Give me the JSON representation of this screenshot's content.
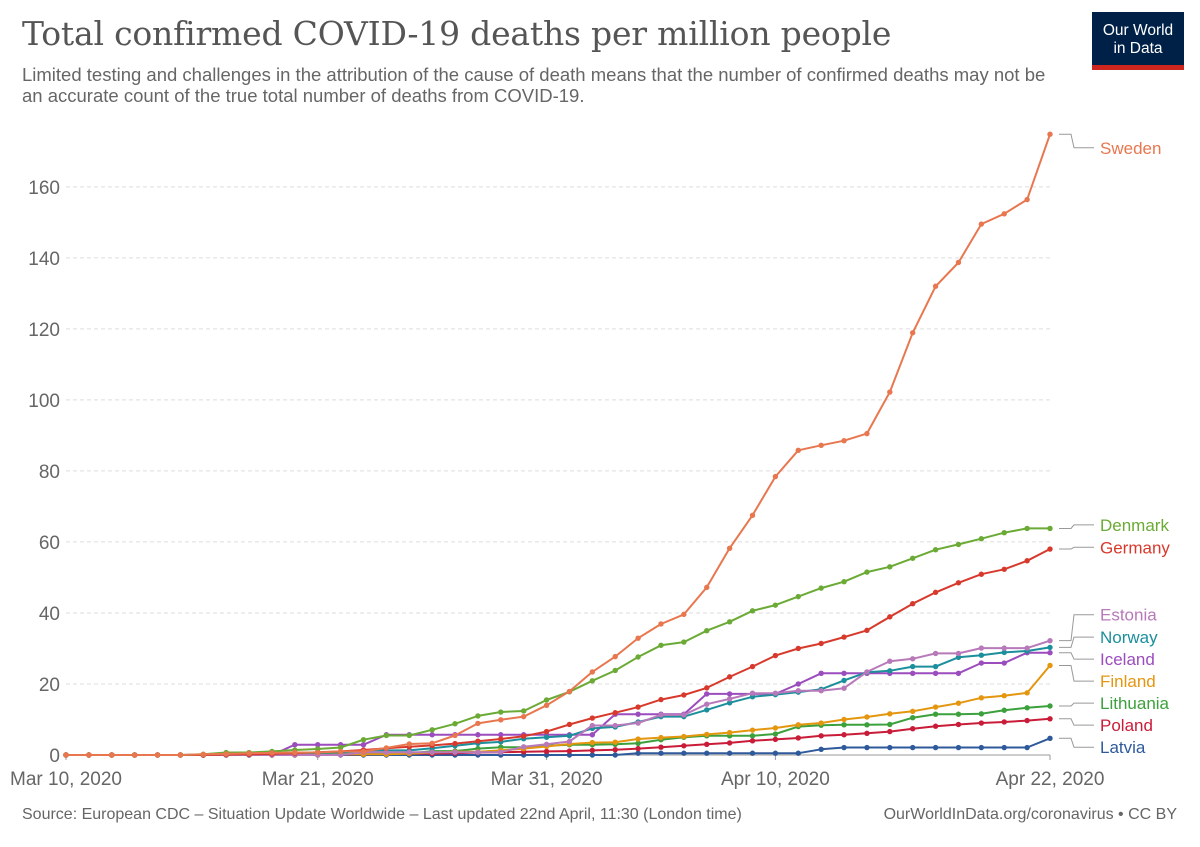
{
  "header": {
    "title": "Total confirmed COVID-19 deaths per million people",
    "subtitle": "Limited testing and challenges in the attribution of the cause of death means that the number of confirmed deaths may not be an accurate count of the true total number of deaths from COVID-19."
  },
  "logo": {
    "line1": "Our World",
    "line2": "in Data",
    "bg": "#002147",
    "accent": "#ce261e"
  },
  "footer": {
    "source": "Source: European CDC – Situation Update Worldwide – Last updated 22nd April, 11:30 (London time)",
    "credit": "OurWorldInData.org/coronavirus • CC BY"
  },
  "chart_data": {
    "type": "line",
    "title": "Total confirmed COVID-19 deaths per million people",
    "xlabel": "",
    "ylabel": "",
    "x_start": "2020-03-10",
    "x": [
      "Mar 10",
      "Mar 11",
      "Mar 12",
      "Mar 13",
      "Mar 14",
      "Mar 15",
      "Mar 16",
      "Mar 17",
      "Mar 18",
      "Mar 19",
      "Mar 20",
      "Mar 21",
      "Mar 22",
      "Mar 23",
      "Mar 24",
      "Mar 25",
      "Mar 26",
      "Mar 27",
      "Mar 28",
      "Mar 29",
      "Mar 30",
      "Mar 31",
      "Apr 1",
      "Apr 2",
      "Apr 3",
      "Apr 4",
      "Apr 5",
      "Apr 6",
      "Apr 7",
      "Apr 8",
      "Apr 9",
      "Apr 10",
      "Apr 11",
      "Apr 12",
      "Apr 13",
      "Apr 14",
      "Apr 15",
      "Apr 16",
      "Apr 17",
      "Apr 18",
      "Apr 19",
      "Apr 20",
      "Apr 21",
      "Apr 22"
    ],
    "x_ticks": [
      {
        "index": 0,
        "label": "Mar 10, 2020"
      },
      {
        "index": 11,
        "label": "Mar 21, 2020"
      },
      {
        "index": 21,
        "label": "Mar 31, 2020"
      },
      {
        "index": 31,
        "label": "Apr 10, 2020"
      },
      {
        "index": 43,
        "label": "Apr 22, 2020"
      }
    ],
    "y_ticks": [
      0,
      20,
      40,
      60,
      80,
      100,
      120,
      140,
      160
    ],
    "ylim": [
      0,
      176
    ],
    "grid": true,
    "legend": "right-end labels",
    "series": [
      {
        "name": "Sweden",
        "color": "#e8774f",
        "values": [
          0,
          0,
          0,
          0,
          0,
          0,
          0.2,
          0.3,
          0.5,
          0.6,
          0.7,
          0.7,
          1.0,
          1.0,
          2.0,
          3.1,
          3.3,
          5.5,
          8.9,
          9.9,
          10.8,
          14.0,
          17.9,
          23.4,
          27.7,
          32.9,
          36.9,
          39.6,
          47.2,
          58.2,
          67.5,
          78.4,
          85.8,
          87.2,
          88.5,
          90.5,
          102.2,
          118.9,
          132.0,
          138.7,
          149.5,
          152.4,
          156.4,
          174.8
        ]
      },
      {
        "name": "Denmark",
        "color": "#6aaa35",
        "values": [
          0,
          0,
          0,
          0,
          0,
          0,
          0.2,
          0.7,
          0.7,
          1.0,
          1.4,
          1.7,
          2.1,
          4.3,
          5.5,
          5.5,
          7.1,
          8.8,
          11.0,
          12.1,
          12.4,
          15.5,
          17.8,
          20.9,
          23.8,
          27.6,
          30.9,
          31.8,
          35.0,
          37.5,
          40.6,
          42.2,
          44.6,
          47.0,
          48.8,
          51.5,
          53.0,
          55.4,
          57.8,
          59.3,
          60.9,
          62.6,
          63.8,
          63.8
        ]
      },
      {
        "name": "Germany",
        "color": "#d73a2c",
        "values": [
          0,
          0,
          0,
          0,
          0,
          0,
          0,
          0.1,
          0.2,
          0.3,
          0.5,
          0.8,
          1.0,
          1.4,
          1.9,
          2.3,
          2.7,
          3.2,
          3.9,
          4.5,
          5.3,
          6.6,
          8.6,
          10.4,
          11.9,
          13.5,
          15.6,
          16.9,
          18.9,
          22.0,
          24.9,
          28.0,
          30.0,
          31.4,
          33.2,
          35.1,
          38.9,
          42.6,
          45.8,
          48.5,
          50.9,
          52.3,
          54.7,
          58.0
        ]
      },
      {
        "name": "Estonia",
        "color": "#b779b9",
        "values": [
          0,
          0,
          0,
          0,
          0,
          0,
          0,
          0,
          0,
          0,
          0,
          0,
          0,
          0.8,
          0.8,
          0.8,
          0.8,
          0.8,
          0.8,
          0.8,
          2.3,
          3.0,
          3.8,
          8.3,
          8.3,
          9.0,
          11.3,
          11.3,
          14.3,
          15.8,
          17.4,
          17.4,
          18.1,
          18.1,
          18.8,
          23.4,
          26.4,
          27.1,
          28.6,
          28.6,
          30.1,
          30.1,
          30.1,
          32.2
        ]
      },
      {
        "name": "Norway",
        "color": "#1b8f9c",
        "values": [
          0,
          0,
          0,
          0,
          0,
          0,
          0,
          0,
          0,
          0.2,
          0.6,
          0.6,
          0.7,
          1.3,
          1.3,
          1.3,
          1.9,
          2.6,
          3.3,
          3.7,
          4.6,
          5.0,
          5.4,
          7.5,
          7.9,
          9.3,
          10.8,
          10.8,
          12.7,
          14.7,
          16.4,
          17.0,
          17.7,
          18.5,
          21.0,
          23.3,
          23.7,
          24.9,
          24.9,
          27.5,
          28.1,
          28.9,
          29.3,
          30.3
        ]
      },
      {
        "name": "Iceland",
        "color": "#9b4dbd",
        "values": [
          0,
          0,
          0,
          0,
          0,
          0,
          0,
          0,
          0,
          0,
          2.9,
          2.9,
          2.9,
          2.9,
          5.7,
          5.7,
          5.7,
          5.7,
          5.7,
          5.7,
          5.7,
          5.7,
          5.7,
          5.7,
          11.5,
          11.5,
          11.5,
          11.5,
          17.2,
          17.2,
          17.2,
          17.2,
          20.0,
          23.0,
          23.0,
          23.0,
          23.0,
          23.0,
          23.0,
          23.0,
          25.9,
          25.9,
          28.8,
          28.8
        ]
      },
      {
        "name": "Finland",
        "color": "#e4960f",
        "values": [
          0,
          0,
          0,
          0,
          0,
          0,
          0,
          0,
          0,
          0,
          0,
          0,
          0.2,
          0.2,
          0.2,
          0.4,
          0.7,
          0.9,
          0.9,
          1.3,
          1.8,
          2.4,
          3.1,
          3.5,
          3.6,
          4.5,
          4.9,
          5.2,
          5.8,
          6.3,
          7.0,
          7.6,
          8.5,
          9.0,
          10.0,
          10.7,
          11.6,
          12.3,
          13.5,
          14.6,
          16.1,
          16.7,
          17.5,
          25.2
        ]
      },
      {
        "name": "Lithuania",
        "color": "#3ca03c",
        "values": [
          0,
          0,
          0,
          0,
          0,
          0,
          0,
          0,
          0,
          0,
          0,
          0.4,
          0.4,
          0.4,
          0.4,
          0.4,
          1.1,
          1.1,
          1.8,
          2.2,
          2.2,
          2.6,
          2.9,
          2.9,
          3.0,
          3.3,
          4.3,
          5.0,
          5.4,
          5.4,
          5.4,
          5.9,
          8.0,
          8.4,
          8.5,
          8.5,
          8.6,
          10.5,
          11.5,
          11.5,
          11.6,
          12.6,
          13.3,
          13.8
        ]
      },
      {
        "name": "Poland",
        "color": "#c91c38",
        "values": [
          0,
          0,
          0,
          0,
          0,
          0,
          0,
          0,
          0,
          0,
          0,
          0.1,
          0.1,
          0.2,
          0.3,
          0.4,
          0.4,
          0.5,
          0.7,
          0.8,
          0.9,
          1.0,
          1.1,
          1.3,
          1.5,
          1.8,
          2.2,
          2.6,
          3.0,
          3.4,
          4.0,
          4.4,
          4.8,
          5.4,
          5.7,
          6.1,
          6.6,
          7.4,
          8.1,
          8.6,
          9.0,
          9.3,
          9.7,
          10.2
        ]
      },
      {
        "name": "Latvia",
        "color": "#2e5a9b",
        "values": [
          0,
          0,
          0,
          0,
          0,
          0,
          0,
          0,
          0,
          0,
          0,
          0,
          0,
          0,
          0,
          0,
          0,
          0,
          0,
          0,
          0,
          0,
          0,
          0,
          0,
          0.5,
          0.5,
          0.5,
          0.5,
          0.5,
          0.5,
          0.5,
          0.5,
          1.6,
          2.1,
          2.1,
          2.1,
          2.1,
          2.1,
          2.1,
          2.1,
          2.1,
          2.1,
          4.7
        ]
      }
    ],
    "label_targets": {
      "Sweden": 171,
      "Denmark": 64.8,
      "Germany": 58.5,
      "Estonia": 39.5,
      "Norway": 33.2,
      "Iceland": 27.0,
      "Finland": 20.8,
      "Lithuania": 14.6,
      "Poland": 8.4,
      "Latvia": 2.2
    }
  }
}
